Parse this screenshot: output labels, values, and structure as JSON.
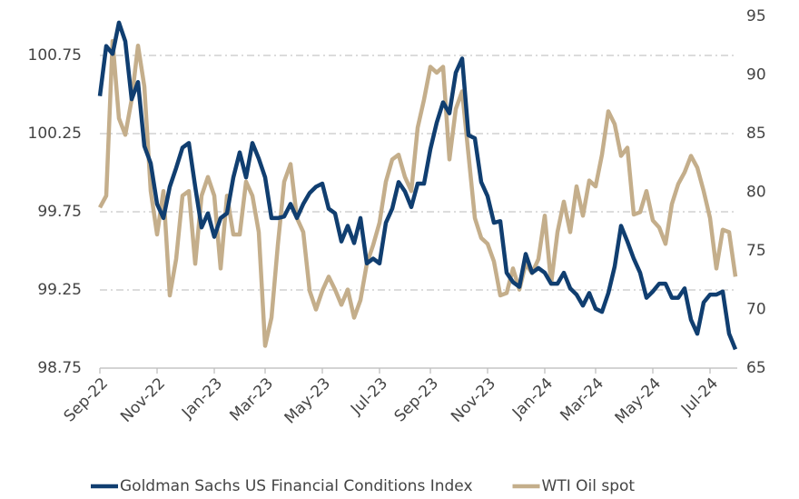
{
  "chart_data": {
    "type": "line",
    "categories": [
      "Sep-22",
      null,
      null,
      null,
      null,
      null,
      null,
      null,
      null,
      "Nov-22",
      null,
      null,
      null,
      null,
      null,
      null,
      null,
      null,
      "Jan-23",
      null,
      null,
      null,
      null,
      null,
      null,
      null,
      "Mar-23",
      null,
      null,
      null,
      null,
      null,
      null,
      null,
      null,
      "May-23",
      null,
      null,
      null,
      null,
      null,
      null,
      null,
      null,
      "Jul-23",
      null,
      null,
      null,
      null,
      null,
      null,
      null,
      "Sep-23",
      null,
      null,
      null,
      null,
      null,
      null,
      null,
      null,
      "Nov-23",
      null,
      null,
      null,
      null,
      null,
      null,
      null,
      null,
      "Jan-24",
      null,
      null,
      null,
      null,
      null,
      null,
      null,
      "Mar-24",
      null,
      null,
      null,
      null,
      null,
      null,
      null,
      null,
      "May-24",
      null,
      null,
      null,
      null,
      null,
      null,
      null,
      null,
      "Jul-24",
      null,
      null,
      null,
      null
    ],
    "series": [
      {
        "name": "Goldman Sachs US Financial Conditions Index",
        "color": "#103e70",
        "axis": "y",
        "values": [
          100.49,
          100.81,
          100.76,
          100.96,
          100.84,
          100.47,
          100.58,
          100.17,
          100.06,
          99.8,
          99.71,
          99.91,
          100.03,
          100.16,
          100.19,
          99.91,
          99.65,
          99.74,
          99.59,
          99.71,
          99.74,
          99.97,
          100.13,
          99.97,
          100.19,
          100.09,
          99.97,
          99.71,
          99.71,
          99.72,
          99.8,
          99.71,
          99.8,
          99.87,
          99.91,
          99.93,
          99.77,
          99.74,
          99.56,
          99.66,
          99.55,
          99.71,
          99.42,
          99.45,
          99.42,
          99.68,
          99.77,
          99.94,
          99.88,
          99.78,
          99.93,
          99.93,
          100.15,
          100.32,
          100.45,
          100.38,
          100.64,
          100.73,
          100.24,
          100.22,
          99.94,
          99.85,
          99.68,
          99.69,
          99.36,
          99.3,
          99.27,
          99.48,
          99.36,
          99.39,
          99.36,
          99.29,
          99.29,
          99.36,
          99.26,
          99.22,
          99.15,
          99.23,
          99.13,
          99.11,
          99.23,
          99.4,
          99.66,
          99.56,
          99.45,
          99.36,
          99.2,
          99.24,
          99.29,
          99.29,
          99.2,
          99.2,
          99.26,
          99.06,
          98.97,
          99.17,
          99.22,
          99.22,
          99.24,
          98.97,
          98.87
        ]
      },
      {
        "name": "WTI Oil spot",
        "color": "#c4ae8b",
        "axis": "y2",
        "values": [
          78.7,
          79.7,
          92.9,
          86.3,
          84.9,
          87.9,
          92.5,
          89.0,
          80.1,
          76.4,
          80.1,
          71.2,
          74.3,
          79.7,
          80.1,
          73.9,
          79.7,
          81.3,
          79.7,
          73.5,
          79.7,
          76.4,
          76.4,
          80.9,
          79.7,
          76.6,
          66.9,
          69.3,
          75.5,
          80.9,
          82.4,
          77.8,
          76.6,
          71.6,
          70.0,
          71.6,
          72.8,
          71.7,
          70.4,
          71.7,
          69.3,
          70.8,
          73.9,
          75.5,
          77.4,
          80.9,
          82.8,
          83.2,
          81.3,
          80.1,
          85.5,
          87.9,
          90.7,
          90.2,
          90.7,
          82.8,
          87.1,
          88.6,
          83.2,
          77.8,
          76.1,
          75.6,
          74.1,
          71.2,
          71.4,
          73.5,
          71.7,
          73.9,
          73.1,
          74.3,
          78.0,
          72.2,
          76.6,
          79.2,
          76.6,
          80.5,
          78.0,
          81.0,
          80.5,
          83.2,
          86.9,
          85.8,
          83.1,
          83.8,
          78.1,
          78.3,
          80.1,
          77.6,
          77.0,
          75.6,
          79.0,
          80.7,
          81.7,
          83.1,
          82.1,
          80.1,
          77.8,
          73.5,
          76.8,
          76.6,
          72.8
        ]
      }
    ],
    "ylim": [
      98.75,
      101.0
    ],
    "yticks": [
      98.75,
      99.25,
      99.75,
      100.25,
      100.75
    ],
    "y2lim": [
      65,
      95
    ],
    "y2ticks": [
      65,
      70,
      75,
      80,
      85,
      90,
      95
    ],
    "grid": true,
    "legend": "bottom"
  }
}
